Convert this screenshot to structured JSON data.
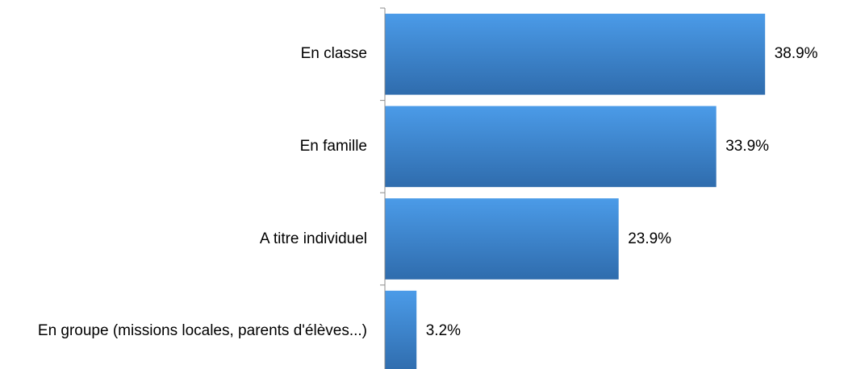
{
  "chart_data": {
    "type": "bar",
    "orientation": "horizontal",
    "categories": [
      "En classe",
      "En famille",
      "A titre individuel",
      "En groupe (missions locales, parents d'élèves...)"
    ],
    "values": [
      38.9,
      33.9,
      23.9,
      3.2
    ],
    "value_labels": [
      "38.9%",
      "33.9%",
      "23.9%",
      "3.2%"
    ],
    "color": "#3f86d2"
  }
}
